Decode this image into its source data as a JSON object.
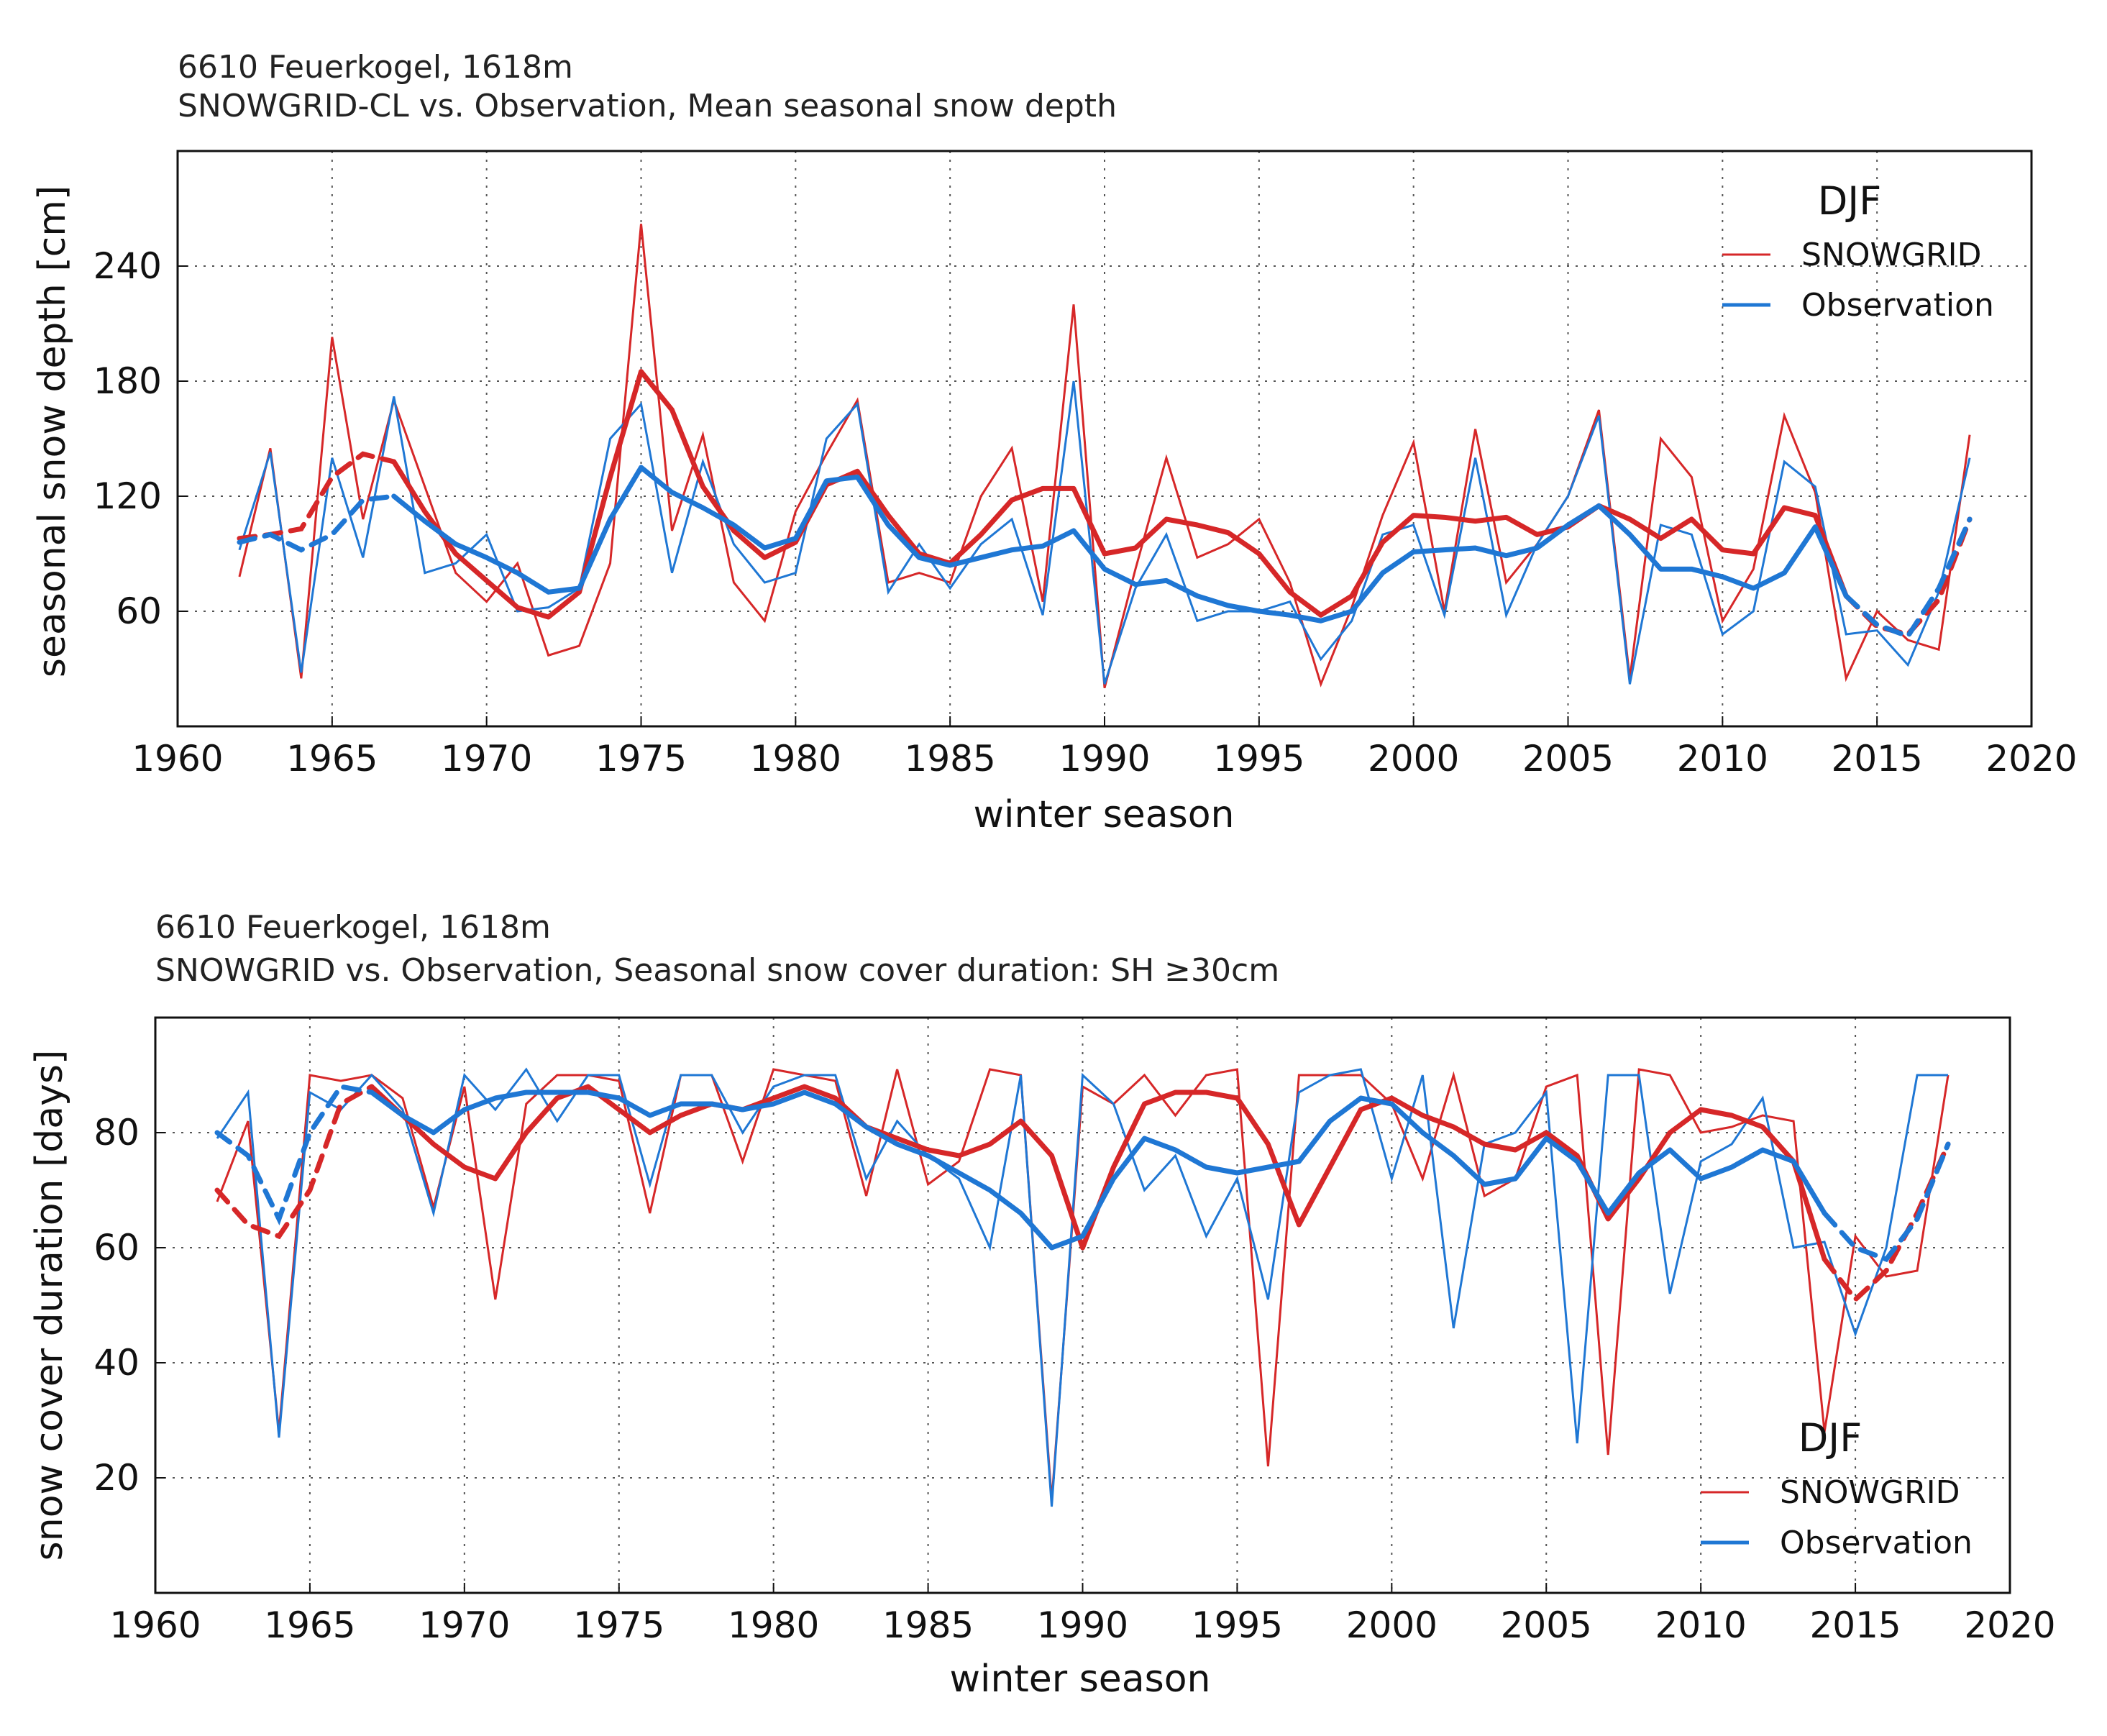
{
  "chart_data": [
    {
      "type": "line",
      "title": "6610 Feuerkogel, 1618m",
      "subtitle": "SNOWGRID-CL vs. Observation, Mean seasonal snow depth",
      "xlabel": "winter season",
      "ylabel": "seasonal snow depth [cm]",
      "xlim": [
        1960,
        2020
      ],
      "ylim": [
        0,
        300
      ],
      "xticks": [
        1960,
        1965,
        1970,
        1975,
        1980,
        1985,
        1990,
        1995,
        2000,
        2005,
        2010,
        2015,
        2020
      ],
      "yticks": [
        60,
        120,
        180,
        240
      ],
      "grid": true,
      "legend": {
        "title": "DJF",
        "position": "top-right",
        "entries": [
          "SNOWGRID",
          "Observation"
        ]
      },
      "series": [
        {
          "name": "SNOWGRID",
          "color": "#d62728",
          "style": "raw",
          "x": [
            1962,
            1963,
            1964,
            1965,
            1966,
            1967,
            1968,
            1969,
            1970,
            1971,
            1972,
            1973,
            1974,
            1975,
            1976,
            1977,
            1978,
            1979,
            1980,
            1981,
            1982,
            1983,
            1984,
            1985,
            1986,
            1987,
            1988,
            1989,
            1990,
            1991,
            1992,
            1993,
            1994,
            1995,
            1996,
            1997,
            1998,
            1999,
            2000,
            2001,
            2002,
            2003,
            2004,
            2005,
            2006,
            2007,
            2008,
            2009,
            2010,
            2011,
            2012,
            2013,
            2014,
            2015,
            2016,
            2017,
            2018
          ],
          "values": [
            78,
            145,
            25,
            203,
            108,
            170,
            125,
            80,
            65,
            85,
            37,
            42,
            85,
            262,
            102,
            152,
            75,
            55,
            112,
            142,
            170,
            75,
            80,
            75,
            120,
            145,
            65,
            220,
            20,
            82,
            140,
            88,
            95,
            108,
            75,
            22,
            62,
            110,
            148,
            60,
            155,
            75,
            95,
            120,
            165,
            25,
            150,
            130,
            55,
            82,
            162,
            122,
            25,
            60,
            45,
            40,
            152
          ]
        },
        {
          "name": "Observation",
          "color": "#1f77d4",
          "style": "raw",
          "x": [
            1962,
            1963,
            1964,
            1965,
            1966,
            1967,
            1968,
            1969,
            1970,
            1971,
            1972,
            1973,
            1974,
            1975,
            1976,
            1977,
            1978,
            1979,
            1980,
            1981,
            1982,
            1983,
            1984,
            1985,
            1986,
            1987,
            1988,
            1989,
            1990,
            1991,
            1992,
            1993,
            1994,
            1995,
            1996,
            1997,
            1998,
            1999,
            2000,
            2001,
            2002,
            2003,
            2004,
            2005,
            2006,
            2007,
            2008,
            2009,
            2010,
            2011,
            2012,
            2013,
            2014,
            2015,
            2016,
            2017,
            2018
          ],
          "values": [
            92,
            143,
            28,
            140,
            88,
            172,
            80,
            85,
            100,
            60,
            62,
            72,
            150,
            168,
            80,
            138,
            95,
            75,
            80,
            150,
            168,
            70,
            95,
            72,
            95,
            108,
            58,
            180,
            22,
            72,
            100,
            55,
            60,
            60,
            65,
            35,
            55,
            100,
            105,
            58,
            140,
            58,
            95,
            120,
            162,
            22,
            105,
            100,
            48,
            60,
            138,
            125,
            48,
            50,
            32,
            70,
            140
          ]
        },
        {
          "name": "SNOWGRID (smoothed)",
          "color": "#d62728",
          "style": "smooth",
          "x": [
            1962,
            1963,
            1964,
            1965,
            1966,
            1967,
            1968,
            1969,
            1970,
            1971,
            1972,
            1973,
            1974,
            1975,
            1976,
            1977,
            1978,
            1979,
            1980,
            1981,
            1982,
            1983,
            1984,
            1985,
            1986,
            1987,
            1988,
            1989,
            1990,
            1991,
            1992,
            1993,
            1994,
            1995,
            1996,
            1997,
            1998,
            1999,
            2000,
            2001,
            2002,
            2003,
            2004,
            2005,
            2006,
            2007,
            2008,
            2009,
            2010,
            2011,
            2012,
            2013,
            2014,
            2015,
            2016,
            2017,
            2018
          ],
          "values": [
            98,
            100,
            103,
            130,
            142,
            138,
            112,
            90,
            76,
            62,
            57,
            70,
            130,
            185,
            165,
            125,
            102,
            88,
            96,
            126,
            133,
            110,
            90,
            85,
            100,
            118,
            124,
            124,
            90,
            93,
            108,
            105,
            101,
            90,
            70,
            58,
            68,
            96,
            110,
            109,
            107,
            109,
            100,
            104,
            115,
            108,
            98,
            108,
            92,
            90,
            114,
            110,
            68,
            52,
            48,
            66,
            108
          ]
        },
        {
          "name": "Observation (smoothed)",
          "color": "#1f77d4",
          "style": "smooth",
          "x": [
            1962,
            1963,
            1964,
            1965,
            1966,
            1967,
            1968,
            1969,
            1970,
            1971,
            1972,
            1973,
            1974,
            1975,
            1976,
            1977,
            1978,
            1979,
            1980,
            1981,
            1982,
            1983,
            1984,
            1985,
            1986,
            1987,
            1988,
            1989,
            1990,
            1991,
            1992,
            1993,
            1994,
            1995,
            1996,
            1997,
            1998,
            1999,
            2000,
            2001,
            2002,
            2003,
            2004,
            2005,
            2006,
            2007,
            2008,
            2009,
            2010,
            2011,
            2012,
            2013,
            2014,
            2015,
            2016,
            2017,
            2018
          ],
          "values": [
            96,
            100,
            92,
            100,
            118,
            120,
            107,
            95,
            88,
            80,
            70,
            72,
            108,
            135,
            122,
            114,
            105,
            93,
            98,
            128,
            130,
            105,
            88,
            84,
            88,
            92,
            94,
            102,
            82,
            74,
            76,
            68,
            63,
            60,
            58,
            55,
            60,
            80,
            91,
            92,
            93,
            89,
            93,
            105,
            115,
            100,
            82,
            82,
            78,
            72,
            80,
            104,
            68,
            53,
            47,
            72,
            108
          ]
        }
      ]
    },
    {
      "type": "line",
      "title": "6610 Feuerkogel, 1618m",
      "subtitle": "SNOWGRID vs. Observation, Seasonal snow cover duration: SH ≥30cm",
      "xlabel": "winter season",
      "ylabel": "snow cover duration [days]",
      "xlim": [
        1960,
        2020
      ],
      "ylim": [
        0,
        100
      ],
      "xticks": [
        1960,
        1965,
        1970,
        1975,
        1980,
        1985,
        1990,
        1995,
        2000,
        2005,
        2010,
        2015,
        2020
      ],
      "yticks": [
        20,
        40,
        60,
        80
      ],
      "grid": true,
      "legend": {
        "title": "DJF",
        "position": "bottom-right",
        "entries": [
          "SNOWGRID",
          "Observation"
        ]
      },
      "series": [
        {
          "name": "SNOWGRID",
          "color": "#d62728",
          "style": "raw",
          "x": [
            1962,
            1963,
            1964,
            1965,
            1966,
            1967,
            1968,
            1969,
            1970,
            1971,
            1972,
            1973,
            1974,
            1975,
            1976,
            1977,
            1978,
            1979,
            1980,
            1981,
            1982,
            1983,
            1984,
            1985,
            1986,
            1987,
            1988,
            1989,
            1990,
            1991,
            1992,
            1993,
            1994,
            1995,
            1996,
            1997,
            1998,
            1999,
            2000,
            2001,
            2002,
            2003,
            2004,
            2005,
            2006,
            2007,
            2008,
            2009,
            2010,
            2011,
            2012,
            2013,
            2014,
            2015,
            2016,
            2017,
            2018
          ],
          "values": [
            68,
            82,
            28,
            90,
            89,
            90,
            86,
            67,
            88,
            51,
            85,
            90,
            90,
            89,
            66,
            90,
            90,
            75,
            91,
            90,
            89,
            69,
            91,
            71,
            75,
            91,
            90,
            16,
            88,
            85,
            90,
            83,
            90,
            91,
            22,
            90,
            90,
            90,
            85,
            72,
            90,
            69,
            72,
            88,
            90,
            24,
            91,
            90,
            80,
            81,
            83,
            82,
            28,
            62,
            55,
            56,
            90
          ]
        },
        {
          "name": "Observation",
          "color": "#1f77d4",
          "style": "raw",
          "x": [
            1962,
            1963,
            1964,
            1965,
            1966,
            1967,
            1968,
            1969,
            1970,
            1971,
            1972,
            1973,
            1974,
            1975,
            1976,
            1977,
            1978,
            1979,
            1980,
            1981,
            1982,
            1983,
            1984,
            1985,
            1986,
            1987,
            1988,
            1989,
            1990,
            1991,
            1992,
            1993,
            1994,
            1995,
            1996,
            1997,
            1998,
            1999,
            2000,
            2001,
            2002,
            2003,
            2004,
            2005,
            2006,
            2007,
            2008,
            2009,
            2010,
            2011,
            2012,
            2013,
            2014,
            2015,
            2016,
            2017,
            2018
          ],
          "values": [
            79,
            87,
            27,
            87,
            84,
            90,
            84,
            66,
            90,
            84,
            91,
            82,
            90,
            90,
            71,
            90,
            90,
            80,
            88,
            90,
            90,
            72,
            82,
            76,
            72,
            60,
            90,
            15,
            90,
            85,
            70,
            76,
            62,
            72,
            51,
            87,
            90,
            91,
            72,
            90,
            46,
            78,
            80,
            87,
            26,
            90,
            90,
            52,
            75,
            78,
            86,
            60,
            61,
            45,
            60,
            90,
            90
          ]
        },
        {
          "name": "SNOWGRID (smoothed)",
          "color": "#d62728",
          "style": "smooth",
          "x": [
            1962,
            1963,
            1964,
            1965,
            1966,
            1967,
            1968,
            1969,
            1970,
            1971,
            1972,
            1973,
            1974,
            1975,
            1976,
            1977,
            1978,
            1979,
            1980,
            1981,
            1982,
            1983,
            1984,
            1985,
            1986,
            1987,
            1988,
            1989,
            1990,
            1991,
            1992,
            1993,
            1994,
            1995,
            1996,
            1997,
            1998,
            1999,
            2000,
            2001,
            2002,
            2003,
            2004,
            2005,
            2006,
            2007,
            2008,
            2009,
            2010,
            2011,
            2012,
            2013,
            2014,
            2015,
            2016,
            2017,
            2018
          ],
          "values": [
            70,
            64,
            62,
            70,
            85,
            88,
            83,
            78,
            74,
            72,
            80,
            86,
            88,
            84,
            80,
            83,
            85,
            84,
            86,
            88,
            86,
            81,
            79,
            77,
            76,
            78,
            82,
            76,
            60,
            74,
            85,
            87,
            87,
            86,
            78,
            64,
            74,
            84,
            86,
            83,
            81,
            78,
            77,
            80,
            76,
            65,
            72,
            80,
            84,
            83,
            81,
            75,
            58,
            51,
            56,
            66,
            78
          ]
        },
        {
          "name": "Observation (smoothed)",
          "color": "#1f77d4",
          "style": "smooth",
          "x": [
            1962,
            1963,
            1964,
            1965,
            1966,
            1967,
            1968,
            1969,
            1970,
            1971,
            1972,
            1973,
            1974,
            1975,
            1976,
            1977,
            1978,
            1979,
            1980,
            1981,
            1982,
            1983,
            1984,
            1985,
            1986,
            1987,
            1988,
            1989,
            1990,
            1991,
            1992,
            1993,
            1994,
            1995,
            1996,
            1997,
            1998,
            1999,
            2000,
            2001,
            2002,
            2003,
            2004,
            2005,
            2006,
            2007,
            2008,
            2009,
            2010,
            2011,
            2012,
            2013,
            2014,
            2015,
            2016,
            2017,
            2018
          ],
          "values": [
            80,
            76,
            65,
            80,
            88,
            87,
            83,
            80,
            84,
            86,
            87,
            87,
            87,
            86,
            83,
            85,
            85,
            84,
            85,
            87,
            85,
            81,
            78,
            76,
            73,
            70,
            66,
            60,
            62,
            72,
            79,
            77,
            74,
            73,
            74,
            75,
            82,
            86,
            85,
            80,
            76,
            71,
            72,
            79,
            75,
            66,
            73,
            77,
            72,
            74,
            77,
            75,
            66,
            60,
            58,
            65,
            78
          ]
        }
      ]
    }
  ]
}
